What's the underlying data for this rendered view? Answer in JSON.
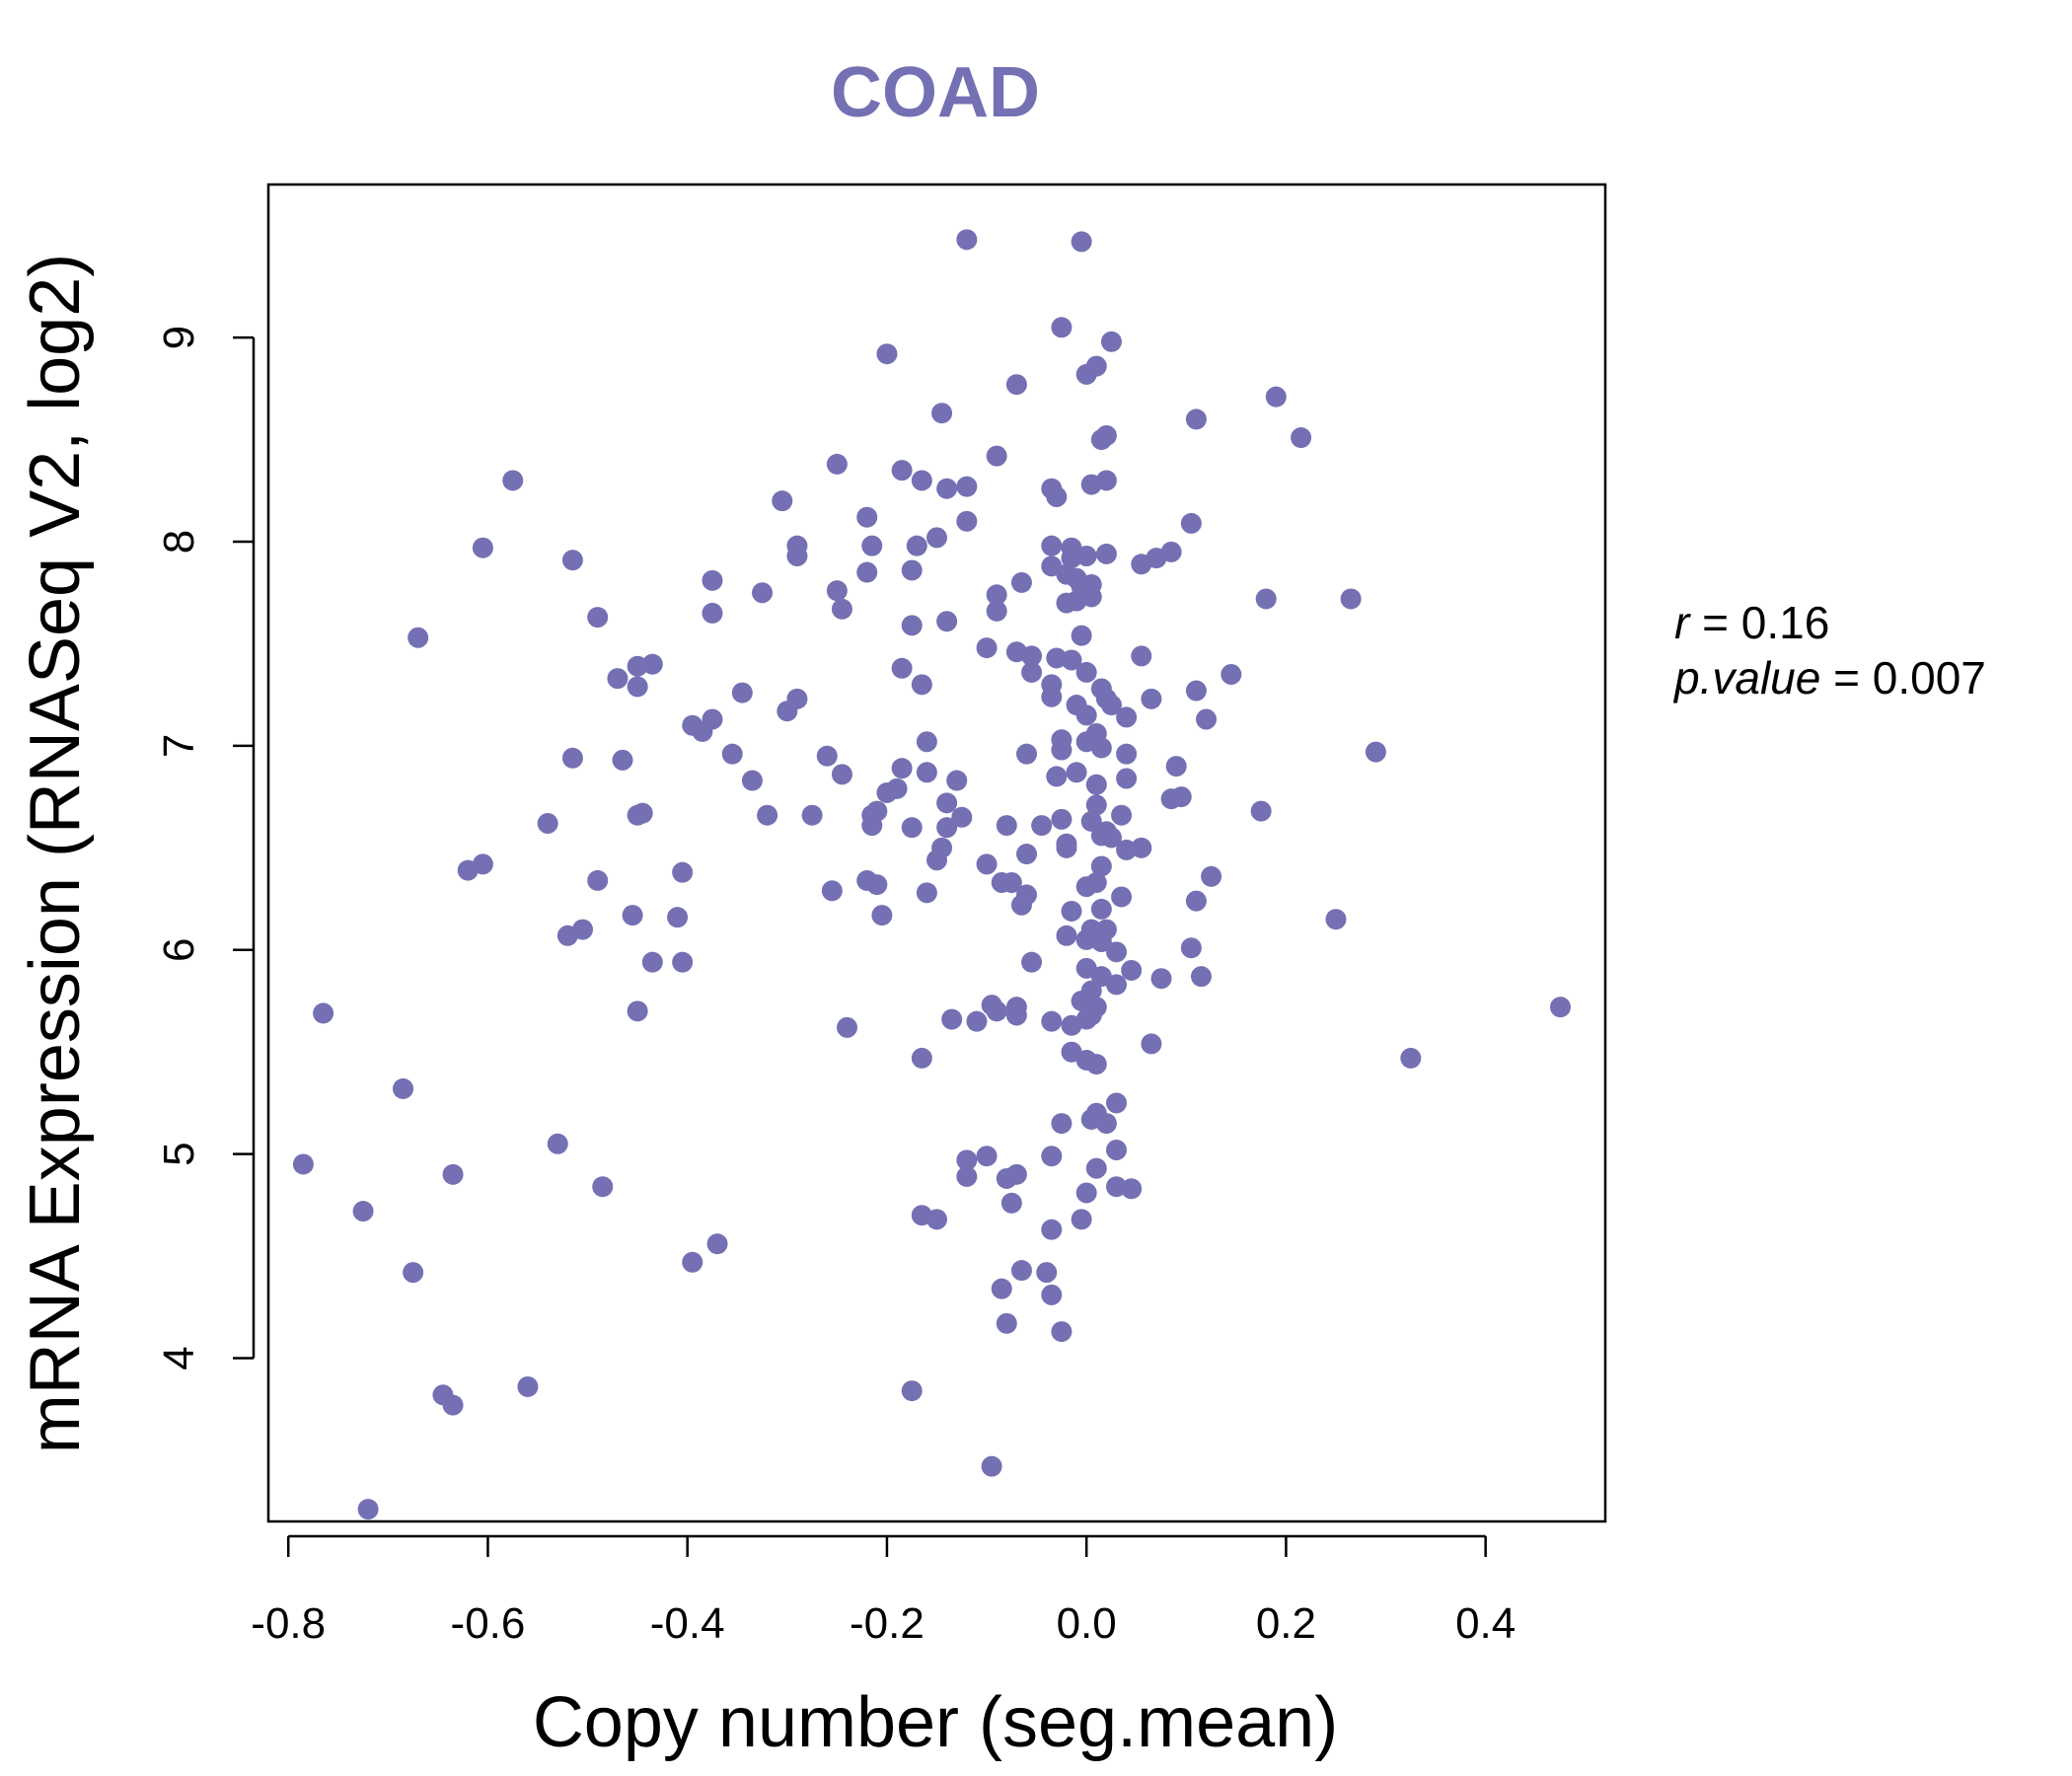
{
  "colors": {
    "accent": "#7470b3",
    "axis": "#000000",
    "background": "#ffffff"
  },
  "chart_data": {
    "type": "scatter",
    "title": "COAD",
    "xlabel": "Copy number (seg.mean)",
    "ylabel": "mRNA Expression (RNASeq V2, log2)",
    "xlim": [
      -0.82,
      0.52
    ],
    "ylim": [
      3.2,
      9.75
    ],
    "xticks": [
      -0.8,
      -0.6,
      -0.4,
      -0.2,
      0.0,
      0.2,
      0.4
    ],
    "xtick_labels": [
      "-0.8",
      "-0.6",
      "-0.4",
      "-0.2",
      "0.0",
      "0.2",
      "0.4"
    ],
    "yticks": [
      4,
      5,
      6,
      7,
      8,
      9
    ],
    "ytick_labels": [
      "4",
      "5",
      "6",
      "7",
      "8",
      "9"
    ],
    "grid": false,
    "legend": "none",
    "stats": {
      "r_label": "r",
      "r_value": "0.16",
      "p_label": "p.value",
      "p_value": "0.007"
    },
    "points": [
      [
        -0.12,
        9.48
      ],
      [
        -0.005,
        9.47
      ],
      [
        -0.025,
        9.05
      ],
      [
        0.025,
        8.98
      ],
      [
        -0.2,
        8.92
      ],
      [
        0.01,
        8.86
      ],
      [
        0.0,
        8.82
      ],
      [
        -0.07,
        8.77
      ],
      [
        0.19,
        8.71
      ],
      [
        -0.145,
        8.63
      ],
      [
        0.11,
        8.6
      ],
      [
        0.02,
        8.52
      ],
      [
        0.215,
        8.51
      ],
      [
        0.015,
        8.5
      ],
      [
        -0.09,
        8.42
      ],
      [
        -0.25,
        8.38
      ],
      [
        -0.185,
        8.35
      ],
      [
        -0.575,
        8.3
      ],
      [
        -0.165,
        8.3
      ],
      [
        0.02,
        8.3
      ],
      [
        0.005,
        8.28
      ],
      [
        -0.12,
        8.27
      ],
      [
        -0.14,
        8.26
      ],
      [
        -0.035,
        8.26
      ],
      [
        -0.03,
        8.22
      ],
      [
        -0.305,
        8.2
      ],
      [
        -0.22,
        8.12
      ],
      [
        -0.12,
        8.1
      ],
      [
        0.105,
        8.09
      ],
      [
        -0.15,
        8.02
      ],
      [
        -0.605,
        7.97
      ],
      [
        -0.29,
        7.98
      ],
      [
        -0.215,
        7.98
      ],
      [
        -0.17,
        7.98
      ],
      [
        -0.035,
        7.98
      ],
      [
        -0.015,
        7.97
      ],
      [
        0.085,
        7.95
      ],
      [
        0.02,
        7.94
      ],
      [
        -0.29,
        7.93
      ],
      [
        0.0,
        7.93
      ],
      [
        -0.015,
        7.92
      ],
      [
        0.07,
        7.92
      ],
      [
        -0.515,
        7.91
      ],
      [
        0.055,
        7.89
      ],
      [
        -0.035,
        7.88
      ],
      [
        -0.175,
        7.86
      ],
      [
        -0.22,
        7.85
      ],
      [
        -0.02,
        7.84
      ],
      [
        -0.01,
        7.82
      ],
      [
        -0.375,
        7.81
      ],
      [
        -0.065,
        7.8
      ],
      [
        0.005,
        7.79
      ],
      [
        -0.005,
        7.78
      ],
      [
        -0.325,
        7.75
      ],
      [
        -0.25,
        7.76
      ],
      [
        -0.09,
        7.74
      ],
      [
        0.18,
        7.72
      ],
      [
        0.265,
        7.72
      ],
      [
        0.005,
        7.73
      ],
      [
        -0.02,
        7.7
      ],
      [
        -0.01,
        7.71
      ],
      [
        -0.245,
        7.67
      ],
      [
        -0.09,
        7.66
      ],
      [
        -0.375,
        7.65
      ],
      [
        -0.49,
        7.63
      ],
      [
        -0.14,
        7.61
      ],
      [
        -0.175,
        7.59
      ],
      [
        -0.005,
        7.54
      ],
      [
        -0.67,
        7.53
      ],
      [
        -0.1,
        7.48
      ],
      [
        -0.07,
        7.46
      ],
      [
        -0.055,
        7.44
      ],
      [
        0.055,
        7.44
      ],
      [
        -0.03,
        7.43
      ],
      [
        -0.015,
        7.42
      ],
      [
        -0.45,
        7.39
      ],
      [
        -0.435,
        7.4
      ],
      [
        -0.185,
        7.38
      ],
      [
        0.0,
        7.36
      ],
      [
        -0.055,
        7.36
      ],
      [
        0.145,
        7.35
      ],
      [
        -0.47,
        7.33
      ],
      [
        -0.165,
        7.3
      ],
      [
        -0.035,
        7.3
      ],
      [
        -0.45,
        7.29
      ],
      [
        0.015,
        7.28
      ],
      [
        0.11,
        7.27
      ],
      [
        -0.345,
        7.26
      ],
      [
        0.02,
        7.23
      ],
      [
        0.065,
        7.23
      ],
      [
        -0.29,
        7.23
      ],
      [
        -0.035,
        7.24
      ],
      [
        0.025,
        7.2
      ],
      [
        -0.01,
        7.2
      ],
      [
        -0.3,
        7.17
      ],
      [
        0.0,
        7.15
      ],
      [
        0.04,
        7.14
      ],
      [
        0.12,
        7.13
      ],
      [
        -0.375,
        7.13
      ],
      [
        -0.395,
        7.1
      ],
      [
        -0.385,
        7.07
      ],
      [
        0.01,
        7.06
      ],
      [
        -0.025,
        7.03
      ],
      [
        -0.16,
        7.02
      ],
      [
        0.0,
        7.02
      ],
      [
        0.015,
        6.99
      ],
      [
        -0.025,
        6.98
      ],
      [
        -0.355,
        6.96
      ],
      [
        -0.26,
        6.95
      ],
      [
        -0.06,
        6.96
      ],
      [
        0.04,
        6.96
      ],
      [
        0.29,
        6.97
      ],
      [
        -0.515,
        6.94
      ],
      [
        -0.465,
        6.93
      ],
      [
        0.09,
        6.9
      ],
      [
        -0.185,
        6.89
      ],
      [
        -0.01,
        6.87
      ],
      [
        -0.16,
        6.87
      ],
      [
        -0.245,
        6.86
      ],
      [
        -0.03,
        6.85
      ],
      [
        0.04,
        6.84
      ],
      [
        -0.335,
        6.83
      ],
      [
        -0.13,
        6.83
      ],
      [
        0.01,
        6.81
      ],
      [
        -0.19,
        6.79
      ],
      [
        -0.2,
        6.77
      ],
      [
        0.095,
        6.75
      ],
      [
        0.085,
        6.74
      ],
      [
        -0.14,
        6.72
      ],
      [
        0.01,
        6.71
      ],
      [
        -0.21,
        6.68
      ],
      [
        -0.215,
        6.66
      ],
      [
        -0.45,
        6.66
      ],
      [
        -0.445,
        6.67
      ],
      [
        -0.275,
        6.66
      ],
      [
        -0.32,
        6.66
      ],
      [
        -0.125,
        6.65
      ],
      [
        0.035,
        6.66
      ],
      [
        0.175,
        6.68
      ],
      [
        -0.025,
        6.64
      ],
      [
        0.005,
        6.63
      ],
      [
        -0.54,
        6.62
      ],
      [
        -0.08,
        6.61
      ],
      [
        -0.045,
        6.61
      ],
      [
        -0.175,
        6.6
      ],
      [
        -0.215,
        6.61
      ],
      [
        -0.14,
        6.6
      ],
      [
        0.02,
        6.58
      ],
      [
        0.015,
        6.56
      ],
      [
        0.025,
        6.55
      ],
      [
        -0.02,
        6.52
      ],
      [
        0.055,
        6.5
      ],
      [
        -0.145,
        6.5
      ],
      [
        -0.02,
        6.5
      ],
      [
        0.04,
        6.49
      ],
      [
        -0.06,
        6.47
      ],
      [
        -0.15,
        6.44
      ],
      [
        -0.1,
        6.42
      ],
      [
        0.015,
        6.41
      ],
      [
        -0.605,
        6.42
      ],
      [
        -0.62,
        6.39
      ],
      [
        -0.405,
        6.38
      ],
      [
        0.125,
        6.36
      ],
      [
        -0.22,
        6.34
      ],
      [
        -0.21,
        6.32
      ],
      [
        -0.49,
        6.34
      ],
      [
        -0.085,
        6.33
      ],
      [
        0.01,
        6.33
      ],
      [
        -0.075,
        6.33
      ],
      [
        0.0,
        6.31
      ],
      [
        -0.255,
        6.29
      ],
      [
        -0.16,
        6.28
      ],
      [
        -0.06,
        6.27
      ],
      [
        -0.065,
        6.22
      ],
      [
        0.035,
        6.26
      ],
      [
        0.11,
        6.24
      ],
      [
        0.015,
        6.2
      ],
      [
        -0.015,
        6.19
      ],
      [
        -0.455,
        6.17
      ],
      [
        -0.205,
        6.17
      ],
      [
        -0.41,
        6.16
      ],
      [
        0.25,
        6.15
      ],
      [
        0.005,
        6.1
      ],
      [
        0.02,
        6.1
      ],
      [
        -0.505,
        6.1
      ],
      [
        -0.52,
        6.07
      ],
      [
        -0.02,
        6.07
      ],
      [
        0.0,
        6.05
      ],
      [
        0.015,
        6.04
      ],
      [
        0.105,
        6.01
      ],
      [
        0.03,
        5.99
      ],
      [
        -0.435,
        5.94
      ],
      [
        -0.405,
        5.94
      ],
      [
        -0.055,
        5.94
      ],
      [
        0.0,
        5.91
      ],
      [
        0.045,
        5.9
      ],
      [
        0.015,
        5.87
      ],
      [
        0.075,
        5.86
      ],
      [
        0.115,
        5.87
      ],
      [
        0.03,
        5.83
      ],
      [
        0.005,
        5.8
      ],
      [
        -0.005,
        5.75
      ],
      [
        0.01,
        5.72
      ],
      [
        -0.095,
        5.73
      ],
      [
        -0.07,
        5.72
      ],
      [
        -0.765,
        5.69
      ],
      [
        -0.45,
        5.7
      ],
      [
        -0.07,
        5.68
      ],
      [
        -0.09,
        5.7
      ],
      [
        0.005,
        5.68
      ],
      [
        0.0,
        5.66
      ],
      [
        -0.135,
        5.66
      ],
      [
        -0.11,
        5.65
      ],
      [
        -0.035,
        5.65
      ],
      [
        -0.015,
        5.63
      ],
      [
        0.475,
        5.72
      ],
      [
        -0.24,
        5.62
      ],
      [
        0.065,
        5.54
      ],
      [
        -0.015,
        5.5
      ],
      [
        -0.165,
        5.47
      ],
      [
        0.0,
        5.46
      ],
      [
        0.325,
        5.47
      ],
      [
        0.01,
        5.44
      ],
      [
        -0.685,
        5.32
      ],
      [
        0.03,
        5.25
      ],
      [
        0.01,
        5.2
      ],
      [
        0.02,
        5.15
      ],
      [
        0.005,
        5.17
      ],
      [
        -0.025,
        5.15
      ],
      [
        -0.53,
        5.05
      ],
      [
        0.03,
        5.02
      ],
      [
        -0.035,
        4.99
      ],
      [
        -0.1,
        4.99
      ],
      [
        -0.12,
        4.97
      ],
      [
        -0.785,
        4.95
      ],
      [
        0.01,
        4.93
      ],
      [
        -0.635,
        4.9
      ],
      [
        -0.07,
        4.9
      ],
      [
        -0.08,
        4.88
      ],
      [
        -0.12,
        4.89
      ],
      [
        -0.485,
        4.84
      ],
      [
        0.03,
        4.84
      ],
      [
        0.045,
        4.83
      ],
      [
        0.0,
        4.81
      ],
      [
        -0.075,
        4.76
      ],
      [
        -0.725,
        4.72
      ],
      [
        -0.165,
        4.7
      ],
      [
        -0.15,
        4.68
      ],
      [
        -0.005,
        4.68
      ],
      [
        -0.035,
        4.63
      ],
      [
        -0.37,
        4.56
      ],
      [
        -0.395,
        4.47
      ],
      [
        -0.065,
        4.43
      ],
      [
        -0.675,
        4.42
      ],
      [
        -0.04,
        4.42
      ],
      [
        -0.085,
        4.34
      ],
      [
        -0.035,
        4.31
      ],
      [
        -0.08,
        4.17
      ],
      [
        -0.025,
        4.13
      ],
      [
        -0.56,
        3.86
      ],
      [
        -0.175,
        3.84
      ],
      [
        -0.645,
        3.82
      ],
      [
        -0.635,
        3.77
      ],
      [
        -0.095,
        3.47
      ],
      [
        -0.72,
        3.26
      ]
    ]
  }
}
